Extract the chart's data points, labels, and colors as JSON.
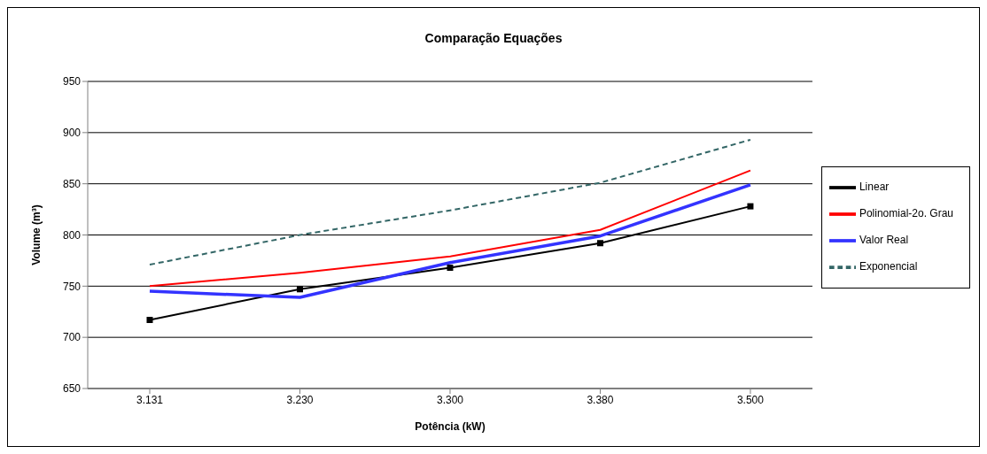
{
  "chart_data": {
    "type": "line",
    "title": "Comparação Equações",
    "xlabel": "Potência (kW)",
    "ylabel": "Volume (m³)",
    "categories": [
      "3.131",
      "3.230",
      "3.300",
      "3.380",
      "3.500"
    ],
    "series": [
      {
        "name": "Linear",
        "color": "#000000",
        "marker": "square",
        "line_style": "solid",
        "values": [
          717,
          747,
          768,
          792,
          828
        ]
      },
      {
        "name": "Polinomial-2o. Grau",
        "color": "#ff0000",
        "marker": "none",
        "line_style": "solid",
        "values": [
          750,
          763,
          779,
          805,
          863
        ]
      },
      {
        "name": "Valor Real",
        "color": "#3333ff",
        "marker": "none",
        "line_style": "solid",
        "values": [
          745,
          739,
          773,
          799,
          849
        ]
      },
      {
        "name": "Exponencial",
        "color": "#336666",
        "marker": "none",
        "line_style": "dashed",
        "values": [
          771,
          800,
          824,
          851,
          893
        ]
      }
    ],
    "ylim": [
      650,
      950
    ],
    "yticks": [
      650,
      700,
      750,
      800,
      850,
      900,
      950
    ],
    "grid": "y",
    "legend": "right"
  }
}
